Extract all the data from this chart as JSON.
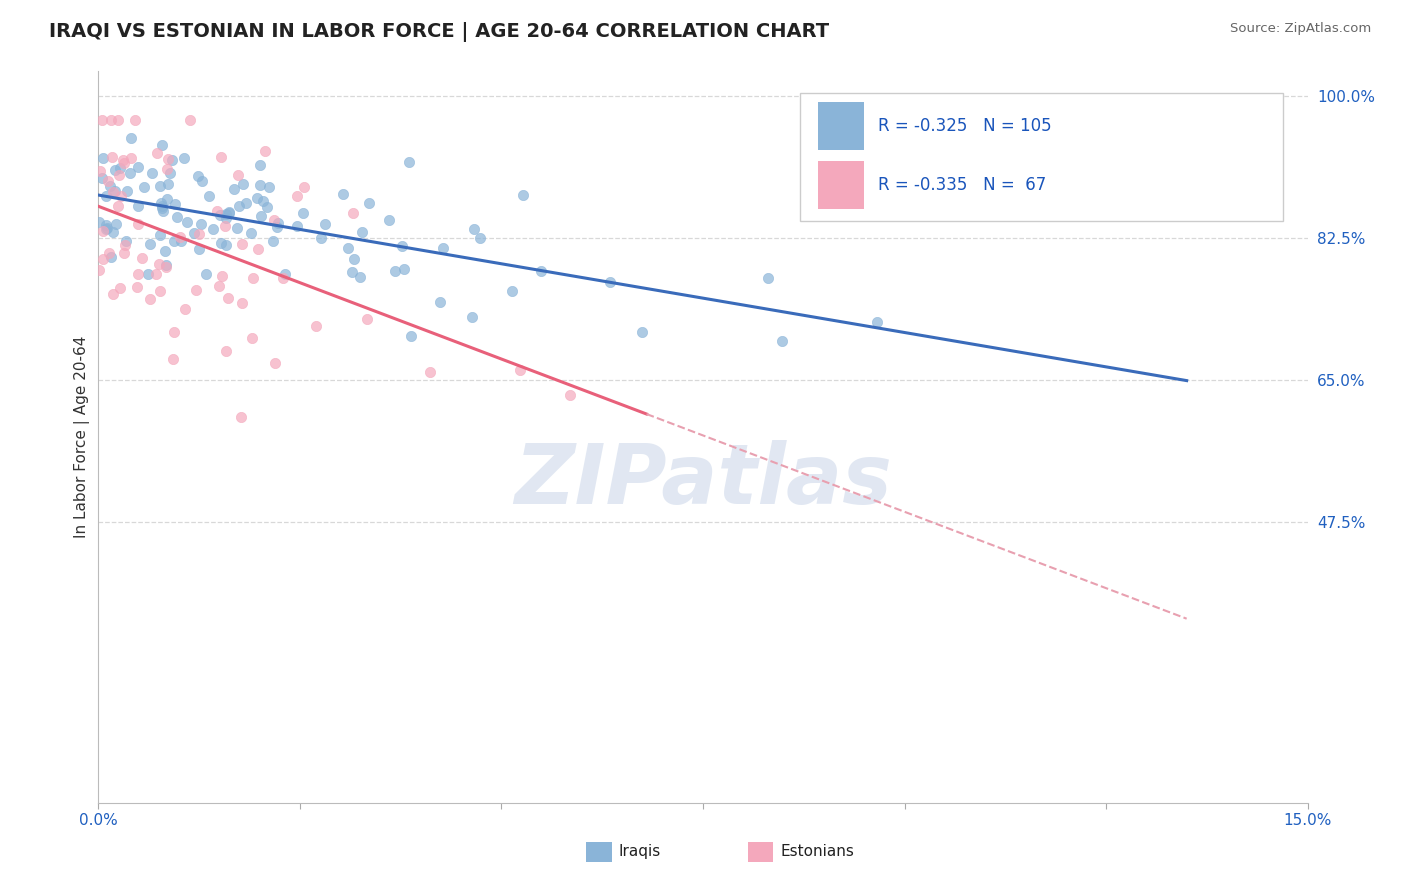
{
  "title": "IRAQI VS ESTONIAN IN LABOR FORCE | AGE 20-64 CORRELATION CHART",
  "source_text": "Source: ZipAtlas.com",
  "ylabel": "In Labor Force | Age 20-64",
  "xlim": [
    0.0,
    0.15
  ],
  "ylim": [
    0.13,
    1.03
  ],
  "xticks": [
    0.0,
    0.025,
    0.05,
    0.075,
    0.1,
    0.125,
    0.15
  ],
  "xticklabels": [
    "0.0%",
    "",
    "",
    "",
    "",
    "",
    "15.0%"
  ],
  "yticks": [
    0.475,
    0.65,
    0.825,
    1.0
  ],
  "yticklabels": [
    "47.5%",
    "65.0%",
    "82.5%",
    "100.0%"
  ],
  "legend_labels": [
    "Iraqis",
    "Estonians"
  ],
  "legend_R": [
    -0.325,
    -0.335
  ],
  "legend_N": [
    105,
    67
  ],
  "blue_color": "#8ab4d8",
  "pink_color": "#f4a8bc",
  "blue_line_color": "#3a6bba",
  "pink_line_color": "#e8607a",
  "pink_dash_color": "#e8a0b0",
  "watermark_text": "ZIPatlas",
  "title_fontsize": 14,
  "axis_label_fontsize": 11,
  "tick_fontsize": 11,
  "background_color": "#ffffff",
  "grid_color": "#d8d8d8"
}
